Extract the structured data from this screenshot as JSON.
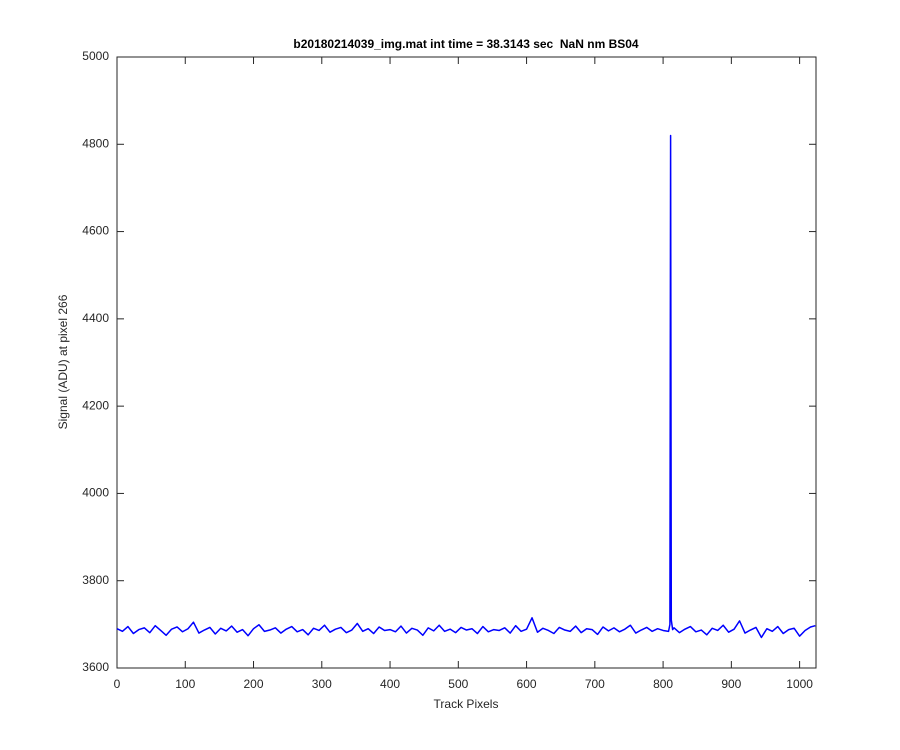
{
  "chart_data": {
    "type": "line",
    "title": "b20180214039_img.mat int time = 38.3143 sec  NaN nm BS04",
    "x_label": "Track Pixels",
    "y_label": "Signal (ADU) at pixel 266",
    "xlim": [
      0,
      1024
    ],
    "ylim": [
      3600,
      5000
    ],
    "xticks": [
      0,
      100,
      200,
      300,
      400,
      500,
      600,
      700,
      800,
      900,
      1000
    ],
    "yticks": [
      3600,
      3800,
      4000,
      4200,
      4400,
      4600,
      4800,
      5000
    ],
    "grid": false,
    "x": [
      0,
      8,
      16,
      24,
      32,
      40,
      48,
      56,
      64,
      72,
      80,
      88,
      96,
      104,
      112,
      120,
      128,
      136,
      144,
      152,
      160,
      168,
      176,
      184,
      192,
      200,
      208,
      216,
      224,
      232,
      240,
      248,
      256,
      264,
      272,
      280,
      288,
      296,
      304,
      312,
      320,
      328,
      336,
      344,
      352,
      360,
      368,
      376,
      384,
      392,
      400,
      408,
      416,
      424,
      432,
      440,
      448,
      456,
      464,
      472,
      480,
      488,
      496,
      504,
      512,
      520,
      528,
      536,
      544,
      552,
      560,
      568,
      576,
      584,
      592,
      600,
      608,
      616,
      624,
      632,
      640,
      648,
      656,
      664,
      672,
      680,
      688,
      696,
      704,
      712,
      720,
      728,
      736,
      744,
      752,
      760,
      768,
      776,
      784,
      792,
      800,
      808,
      810,
      811,
      812,
      814,
      816,
      824,
      832,
      840,
      848,
      856,
      864,
      872,
      880,
      888,
      896,
      904,
      912,
      920,
      928,
      936,
      944,
      952,
      960,
      968,
      976,
      984,
      992,
      1000,
      1008,
      1016,
      1023
    ],
    "series": [
      {
        "color": "#0000ff",
        "values": [
          3690,
          3684,
          3695,
          3679,
          3688,
          3692,
          3681,
          3697,
          3686,
          3675,
          3689,
          3694,
          3683,
          3690,
          3705,
          3680,
          3687,
          3693,
          3678,
          3691,
          3685,
          3696,
          3682,
          3688,
          3674,
          3690,
          3699,
          3684,
          3687,
          3692,
          3680,
          3689,
          3695,
          3683,
          3688,
          3676,
          3691,
          3686,
          3698,
          3682,
          3689,
          3693,
          3681,
          3687,
          3702,
          3684,
          3690,
          3679,
          3694,
          3686,
          3688,
          3683,
          3696,
          3680,
          3691,
          3687,
          3675,
          3692,
          3685,
          3698,
          3684,
          3689,
          3681,
          3693,
          3687,
          3690,
          3679,
          3695,
          3683,
          3688,
          3686,
          3692,
          3680,
          3697,
          3684,
          3689,
          3715,
          3682,
          3691,
          3686,
          3679,
          3693,
          3687,
          3684,
          3696,
          3681,
          3690,
          3688,
          3677,
          3694,
          3685,
          3692,
          3683,
          3689,
          3698,
          3680,
          3687,
          3693,
          3684,
          3690,
          3686,
          3684,
          3700,
          4820,
          3710,
          3688,
          3692,
          3681,
          3689,
          3695,
          3683,
          3687,
          3676,
          3691,
          3686,
          3698,
          3682,
          3689,
          3708,
          3680,
          3687,
          3693,
          3670,
          3690,
          3684,
          3695,
          3679,
          3688,
          3691,
          3673,
          3686,
          3694,
          3697
        ]
      }
    ]
  }
}
